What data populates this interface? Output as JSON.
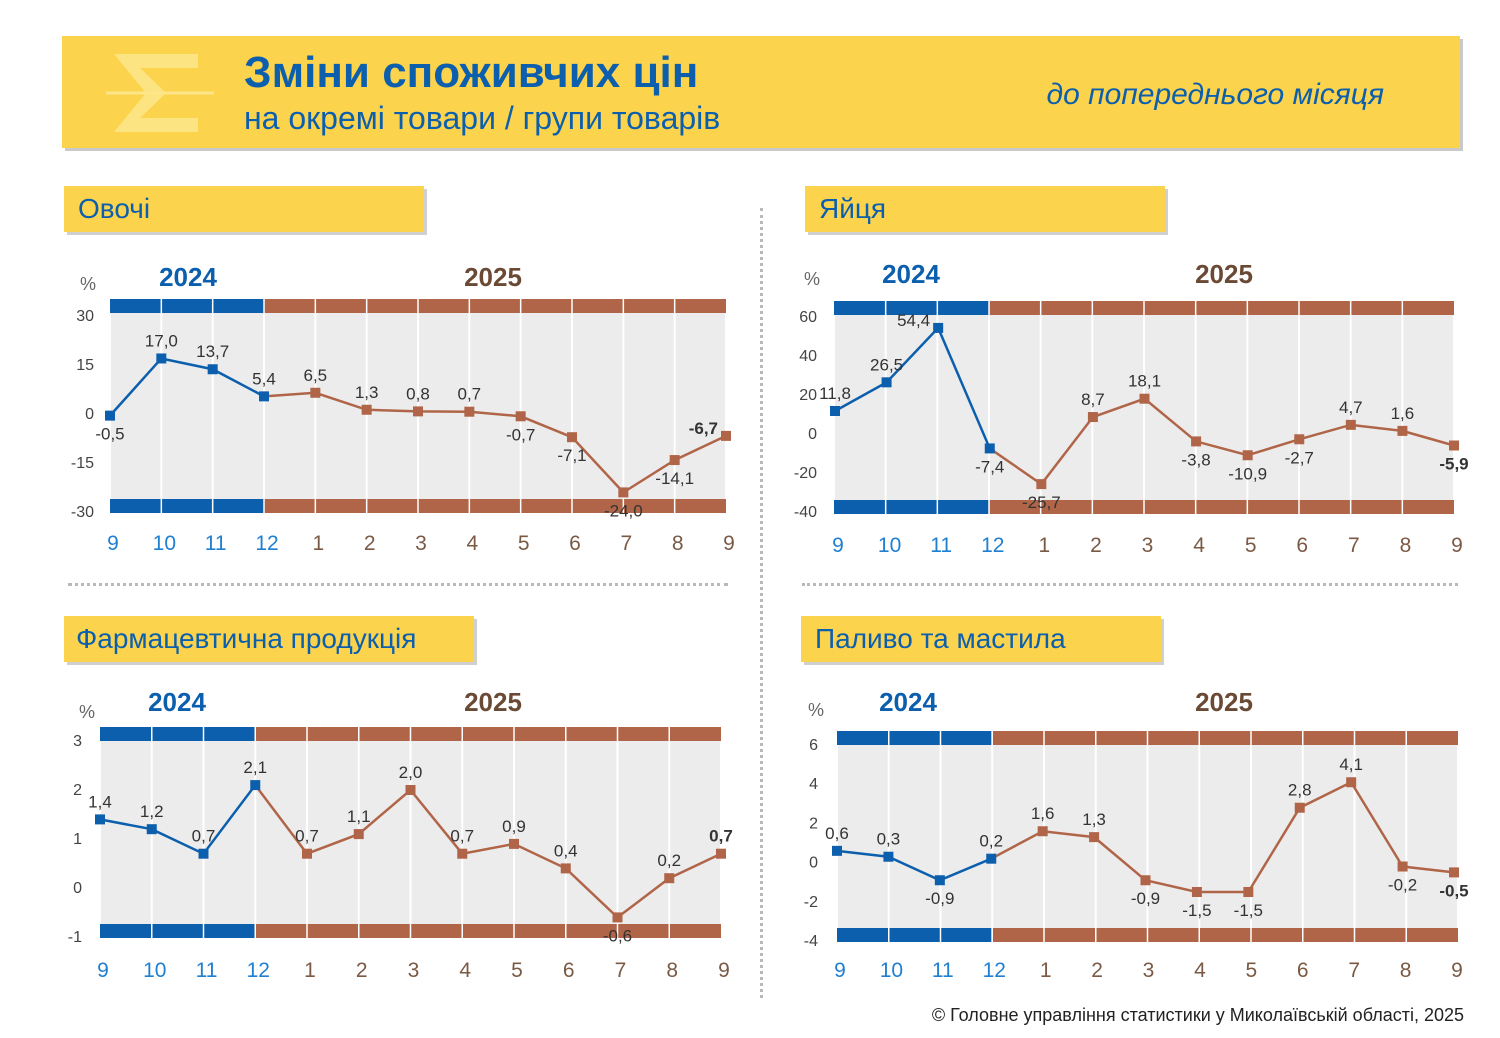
{
  "header": {
    "title": "Зміни споживчих цін",
    "subtitle": "на окремі товари / групи товарів",
    "period": "до попереднього місяця",
    "logo_icon": "sigma-icon"
  },
  "footer": "© Головне управління статистики у Миколаївській області, 2025",
  "colors": {
    "blue": "#0c5fad",
    "brown": "#b06548",
    "banner": "#fcd34d",
    "plot_bg": "#ececec"
  },
  "chart_data": [
    {
      "type": "line",
      "title": "Овочі",
      "unit": "%",
      "year_labels": [
        "2024",
        "2025"
      ],
      "x": [
        "9",
        "10",
        "11",
        "12",
        "1",
        "2",
        "3",
        "4",
        "5",
        "6",
        "7",
        "8",
        "9"
      ],
      "values": [
        -0.5,
        17.0,
        13.7,
        5.4,
        6.5,
        1.3,
        0.8,
        0.7,
        -0.7,
        -7.1,
        -24.0,
        -14.1,
        -6.7
      ],
      "labels": [
        "-0,5",
        "17,0",
        "13,7",
        "5,4",
        "6,5",
        "1,3",
        "0,8",
        "0,7",
        "-0,7",
        "-7,1",
        "-24,0",
        "-14,1",
        "-6,7"
      ],
      "label_pos": [
        "below",
        "above",
        "above",
        "above",
        "above",
        "above",
        "above",
        "above",
        "below",
        "below",
        "below",
        "below",
        "above-left"
      ],
      "yticks": [
        "30",
        "15",
        "0",
        "-15",
        "-30"
      ],
      "ylim": [
        -30,
        30
      ],
      "series": [
        {
          "name": "2024",
          "from": 0,
          "to": 3,
          "color": "#0c5fad"
        },
        {
          "name": "2025",
          "from": 3,
          "to": 12,
          "color": "#b06548"
        }
      ]
    },
    {
      "type": "line",
      "title": "Яйця",
      "unit": "%",
      "year_labels": [
        "2024",
        "2025"
      ],
      "x": [
        "9",
        "10",
        "11",
        "12",
        "1",
        "2",
        "3",
        "4",
        "5",
        "6",
        "7",
        "8",
        "9"
      ],
      "values": [
        11.8,
        26.5,
        54.4,
        -7.4,
        -25.7,
        8.7,
        18.1,
        -3.8,
        -10.9,
        -2.7,
        4.7,
        1.6,
        -5.9
      ],
      "labels": [
        "11,8",
        "26,5",
        "54,4",
        "-7,4",
        "-25,7",
        "8,7",
        "18,1",
        "-3,8",
        "-10,9",
        "-2,7",
        "4,7",
        "1,6",
        "-5,9"
      ],
      "label_pos": [
        "above",
        "above",
        "above-left",
        "below",
        "below",
        "above",
        "above",
        "below",
        "below",
        "below",
        "above",
        "above",
        "below"
      ],
      "yticks": [
        "60",
        "40",
        "20",
        "0",
        "-20",
        "-40"
      ],
      "ylim": [
        -40,
        60
      ],
      "series": [
        {
          "name": "2024",
          "from": 0,
          "to": 3,
          "color": "#0c5fad"
        },
        {
          "name": "2025",
          "from": 3,
          "to": 12,
          "color": "#b06548"
        }
      ]
    },
    {
      "type": "line",
      "title": "Фармацевтична продукція",
      "unit": "%",
      "year_labels": [
        "2024",
        "2025"
      ],
      "x": [
        "9",
        "10",
        "11",
        "12",
        "1",
        "2",
        "3",
        "4",
        "5",
        "6",
        "7",
        "8",
        "9"
      ],
      "values": [
        1.4,
        1.2,
        0.7,
        2.1,
        0.7,
        1.1,
        2.0,
        0.7,
        0.9,
        0.4,
        -0.6,
        0.2,
        0.7
      ],
      "labels": [
        "1,4",
        "1,2",
        "0,7",
        "2,1",
        "0,7",
        "1,1",
        "2,0",
        "0,7",
        "0,9",
        "0,4",
        "-0,6",
        "0,2",
        "0,7"
      ],
      "label_pos": [
        "above",
        "above",
        "above",
        "above",
        "above",
        "above",
        "above",
        "above",
        "above",
        "above",
        "below",
        "above",
        "above"
      ],
      "yticks": [
        "3",
        "2",
        "1",
        "0",
        "-1"
      ],
      "ylim": [
        -1,
        3
      ],
      "series": [
        {
          "name": "2024",
          "from": 0,
          "to": 3,
          "color": "#0c5fad"
        },
        {
          "name": "2025",
          "from": 3,
          "to": 12,
          "color": "#b06548"
        }
      ]
    },
    {
      "type": "line",
      "title": "Паливо та мастила",
      "unit": "%",
      "year_labels": [
        "2024",
        "2025"
      ],
      "x": [
        "9",
        "10",
        "11",
        "12",
        "1",
        "2",
        "3",
        "4",
        "5",
        "6",
        "7",
        "8",
        "9"
      ],
      "values": [
        0.6,
        0.3,
        -0.9,
        0.2,
        1.6,
        1.3,
        -0.9,
        -1.5,
        -1.5,
        2.8,
        4.1,
        -0.2,
        -0.5
      ],
      "labels": [
        "0,6",
        "0,3",
        "-0,9",
        "0,2",
        "1,6",
        "1,3",
        "-0,9",
        "-1,5",
        "-1,5",
        "2,8",
        "4,1",
        "-0,2",
        "-0,5"
      ],
      "label_pos": [
        "above",
        "above",
        "below",
        "above",
        "above",
        "above",
        "below",
        "below",
        "below",
        "above",
        "above",
        "below",
        "below"
      ],
      "yticks": [
        "6",
        "4",
        "2",
        "0",
        "-2",
        "-4"
      ],
      "ylim": [
        -4,
        6
      ],
      "series": [
        {
          "name": "2024",
          "from": 0,
          "to": 3,
          "color": "#0c5fad"
        },
        {
          "name": "2025",
          "from": 3,
          "to": 12,
          "color": "#b06548"
        }
      ]
    }
  ]
}
